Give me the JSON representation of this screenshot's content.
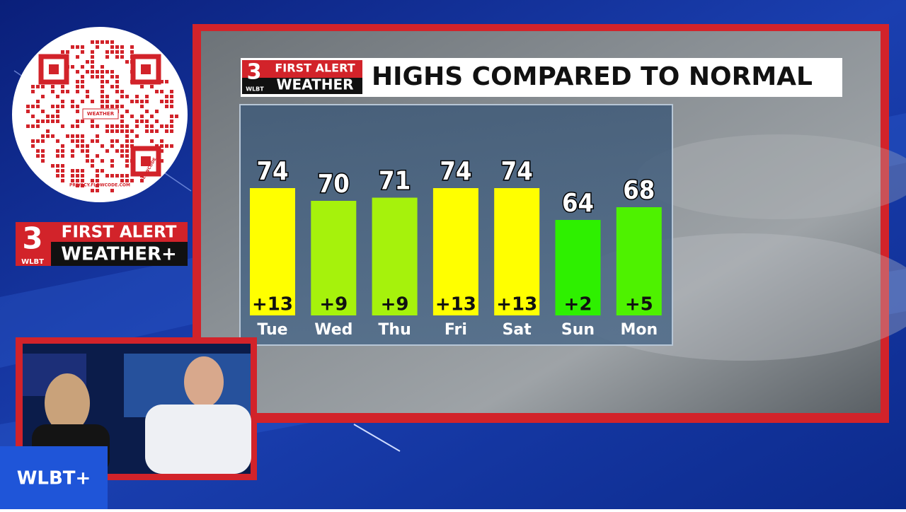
{
  "chart_data": {
    "type": "bar",
    "title": "HIGHS COMPARED TO NORMAL",
    "categories": [
      "Tue",
      "Wed",
      "Thu",
      "Fri",
      "Sat",
      "Sun",
      "Mon"
    ],
    "values": [
      74,
      70,
      71,
      74,
      74,
      64,
      68
    ],
    "colors": [
      "#ffff00",
      "#a6f20c",
      "#a6f20c",
      "#ffff00",
      "#ffff00",
      "#2ef000",
      "#4ef200"
    ],
    "departures": {
      "values": [
        13,
        9,
        9,
        13,
        13,
        2,
        5
      ],
      "value_labels": [
        "+13",
        "+9",
        "+9",
        "+13",
        "+13",
        "+2",
        "+5"
      ]
    },
    "ylim": [
      34,
      80
    ]
  },
  "branding": {
    "station_number": "3",
    "first_alert": "FIRST ALERT",
    "weather": "WEATHER",
    "station": "WLBT",
    "weather_plus": "WEATHER+",
    "channel": "WLBT+",
    "flowcode": "FLOWCODE",
    "privacy": "PRIVACY.FLOWCODE.COM"
  }
}
